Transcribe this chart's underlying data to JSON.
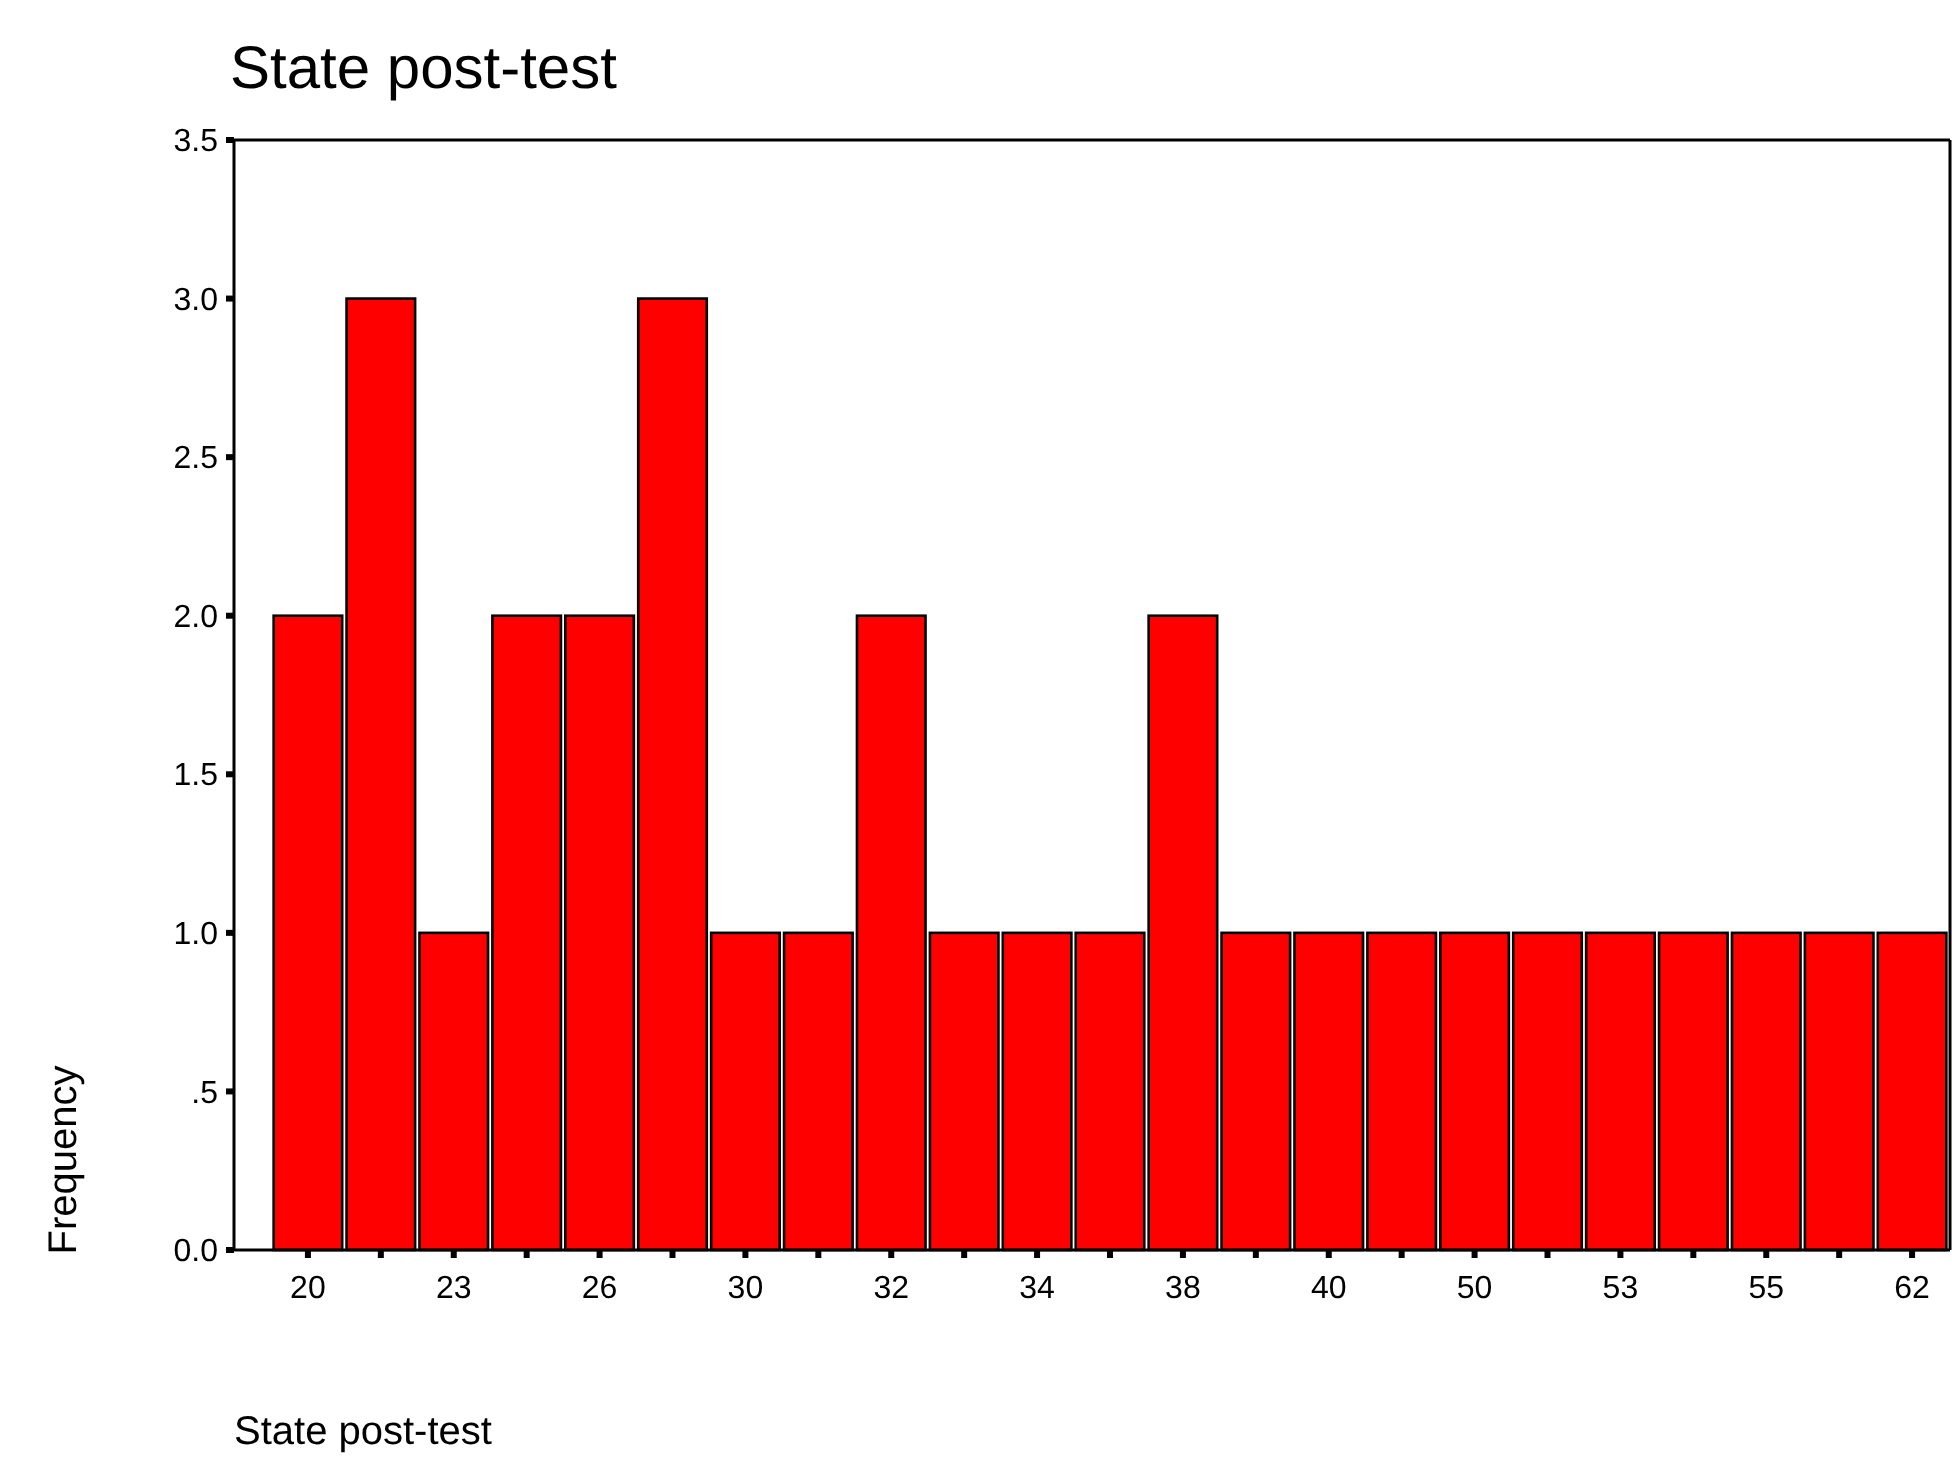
{
  "chart_data": {
    "type": "bar",
    "title": "State post-test",
    "xlabel": "State post-test",
    "ylabel": "Frequency",
    "categories": [
      "20",
      null,
      "23",
      null,
      "26",
      null,
      "30",
      null,
      "32",
      null,
      "34",
      null,
      "38",
      null,
      "40",
      null,
      "50",
      null,
      "53",
      null,
      "55",
      null,
      "62"
    ],
    "values": [
      2,
      3,
      1,
      2,
      2,
      3,
      1,
      1,
      2,
      1,
      1,
      1,
      2,
      1,
      1,
      1,
      1,
      1,
      1,
      1,
      1,
      1,
      1
    ],
    "color": "#ff0000",
    "ylim": [
      0,
      3.5
    ],
    "yticks": [
      {
        "value": 0,
        "label": "0.0"
      },
      {
        "value": 0.5,
        "label": ".5"
      },
      {
        "value": 1,
        "label": "1.0"
      },
      {
        "value": 1.5,
        "label": "1.5"
      },
      {
        "value": 2,
        "label": "2.0"
      },
      {
        "value": 2.5,
        "label": "2.5"
      },
      {
        "value": 3,
        "label": "3.0"
      },
      {
        "value": 3.5,
        "label": "3.5"
      }
    ],
    "grid": false
  }
}
